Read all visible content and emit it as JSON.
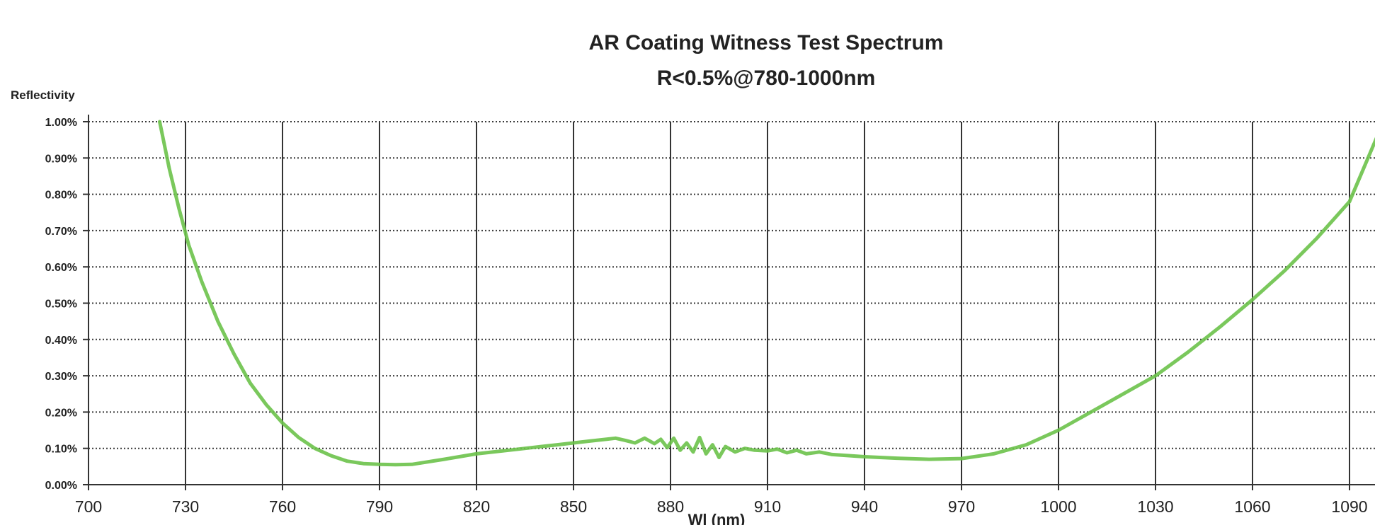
{
  "chart_data": {
    "type": "line",
    "title": "AR Coating Witness Test Spectrum",
    "subtitle": "R<0.5%@780-1000nm",
    "xlabel": "Wl (nm)",
    "ylabel": "Reflectivity",
    "xlim": [
      700,
      1100
    ],
    "ylim": [
      0,
      1.0
    ],
    "x_ticks": [
      700,
      730,
      760,
      790,
      820,
      850,
      880,
      910,
      940,
      970,
      1000,
      1030,
      1060,
      1090
    ],
    "x_tick_labels": [
      "700",
      "730",
      "760",
      "790",
      "820",
      "850",
      "880",
      "910",
      "940",
      "970",
      "1000",
      "1030",
      "1060",
      "1090"
    ],
    "y_ticks": [
      0,
      0.1,
      0.2,
      0.3,
      0.4,
      0.5,
      0.6,
      0.7,
      0.8,
      0.9,
      1.0
    ],
    "y_tick_labels": [
      "0.00%",
      "0.10%",
      "0.20%",
      "0.30%",
      "0.40%",
      "0.50%",
      "0.60%",
      "0.70%",
      "0.80%",
      "0.90%",
      "1.00%"
    ],
    "grid": true,
    "legend": "none",
    "series": [
      {
        "color": "#6cc24a",
        "x": [
          722,
          725,
          728,
          731,
          735,
          740,
          745,
          750,
          755,
          760,
          765,
          770,
          775,
          780,
          785,
          790,
          795,
          800,
          810,
          820,
          830,
          840,
          845,
          850,
          855,
          860,
          863,
          866,
          869,
          872,
          875,
          877,
          879,
          881,
          883,
          885,
          887,
          889,
          891,
          893,
          895,
          897,
          900,
          903,
          906,
          910,
          913,
          916,
          919,
          922,
          926,
          930,
          940,
          950,
          960,
          970,
          980,
          990,
          1000,
          1010,
          1020,
          1030,
          1040,
          1050,
          1060,
          1070,
          1080,
          1090,
          1100
        ],
        "y": [
          1.0,
          0.87,
          0.76,
          0.66,
          0.56,
          0.45,
          0.36,
          0.28,
          0.22,
          0.17,
          0.13,
          0.1,
          0.08,
          0.065,
          0.058,
          0.056,
          0.055,
          0.056,
          0.07,
          0.085,
          0.095,
          0.105,
          0.11,
          0.115,
          0.12,
          0.125,
          0.128,
          0.122,
          0.115,
          0.128,
          0.113,
          0.125,
          0.102,
          0.128,
          0.095,
          0.115,
          0.09,
          0.13,
          0.085,
          0.11,
          0.075,
          0.105,
          0.09,
          0.1,
          0.095,
          0.093,
          0.098,
          0.088,
          0.095,
          0.085,
          0.09,
          0.083,
          0.077,
          0.073,
          0.07,
          0.072,
          0.085,
          0.11,
          0.15,
          0.2,
          0.25,
          0.3,
          0.365,
          0.435,
          0.51,
          0.59,
          0.68,
          0.78,
          0.99
        ]
      }
    ]
  }
}
